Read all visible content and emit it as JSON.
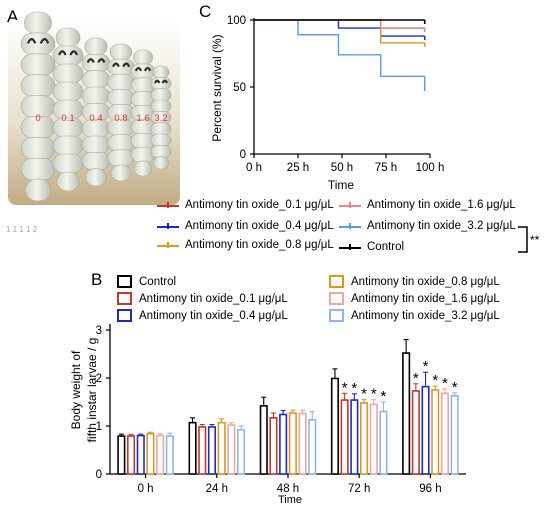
{
  "panels": {
    "a": "A",
    "b": "B",
    "c": "C"
  },
  "photo": {
    "larva_labels": [
      "0",
      "0.1",
      "0.4",
      "0.8",
      "1.6",
      "3.2"
    ],
    "scale_text": "1 1 1 1 2",
    "label_color": "#d9342b"
  },
  "survival_legend": {
    "items": [
      {
        "label": "Antimony tin oxide_0.1 μg/μL",
        "color": "#c0392b"
      },
      {
        "label": "Antimony tin oxide_1.6 μg/μL",
        "color": "#e58a87"
      },
      {
        "label": "Antimony tin oxide_0.4 μg/μL",
        "color": "#1f2bbf"
      },
      {
        "label": "Antimony tin oxide_3.2 μg/μL",
        "color": "#5b9be8"
      },
      {
        "label": "Antimony tin oxide_0.8 μg/μL",
        "color": "#d99a22"
      },
      {
        "label": "Control",
        "color": "#000000"
      }
    ],
    "significance": "**"
  },
  "body_weight_legend": {
    "items": [
      {
        "label": "Control",
        "color": "#000000"
      },
      {
        "label": "Antimony tin oxide_0.8 μg/μL",
        "color": "#d99a22"
      },
      {
        "label": "Antimony tin oxide_0.1 μg/μL",
        "color": "#c0392b"
      },
      {
        "label": "Antimony tin oxide_1.6 μg/μL",
        "color": "#eda7a4"
      },
      {
        "label": "Antimony tin oxide_0.4 μg/μL",
        "color": "#1f2bbf"
      },
      {
        "label": "Antimony tin oxide_3.2 μg/μL",
        "color": "#8fb6ec"
      }
    ]
  },
  "chart_data": [
    {
      "type": "line",
      "ylabel": "Percent survival (%)",
      "xlabel": "Time",
      "x_ticks": [
        "0 h",
        "25 h",
        "50 h",
        "75 h",
        "100 h"
      ],
      "y_ticks": [
        "0",
        "50",
        "100"
      ],
      "xlim": [
        0,
        100
      ],
      "ylim": [
        0,
        100
      ],
      "step": true,
      "series": [
        {
          "name": "Control",
          "color": "#000000",
          "x": [
            0,
            97
          ],
          "y": [
            100,
            100
          ]
        },
        {
          "name": "Antimony tin oxide_0.1 μg/μL",
          "color": "#c0392b",
          "x": [
            0,
            48,
            72,
            97
          ],
          "y": [
            100,
            100,
            94,
            94
          ]
        },
        {
          "name": "Antimony tin oxide_0.4 μg/μL",
          "color": "#1f2bbf",
          "x": [
            0,
            48,
            72,
            97
          ],
          "y": [
            100,
            94,
            88,
            88
          ]
        },
        {
          "name": "Antimony tin oxide_0.8 μg/μL",
          "color": "#d99a22",
          "x": [
            0,
            72,
            97
          ],
          "y": [
            100,
            83,
            83
          ]
        },
        {
          "name": "Antimony tin oxide_1.6 μg/μL",
          "color": "#e58a87",
          "x": [
            0,
            72,
            97
          ],
          "y": [
            100,
            94,
            94
          ]
        },
        {
          "name": "Antimony tin oxide_3.2 μg/μL",
          "color": "#5b9be8",
          "x": [
            0,
            25,
            48,
            72,
            97
          ],
          "y": [
            100,
            89,
            74,
            58,
            50
          ]
        }
      ]
    },
    {
      "type": "bar",
      "ylabel": "Body weight of fifth instar larvae / g",
      "ylabel_lines": [
        "Body weight of",
        "fifth instar larvae / g"
      ],
      "xlabel": "Time",
      "categories": [
        "0 h",
        "24 h",
        "48 h",
        "72 h",
        "96 h"
      ],
      "y_ticks": [
        "0",
        "1",
        "2",
        "3"
      ],
      "ylim": [
        0,
        3
      ],
      "series": [
        {
          "name": "Control",
          "color": "#000000",
          "values": [
            0.79,
            1.07,
            1.42,
            1.99,
            2.52
          ],
          "errors": [
            0.04,
            0.1,
            0.18,
            0.2,
            0.28
          ],
          "sig": [
            "",
            "",
            "",
            "",
            ""
          ]
        },
        {
          "name": "Antimony tin oxide_0.1 μg/μL",
          "color": "#c0392b",
          "values": [
            0.79,
            0.98,
            1.17,
            1.54,
            1.73
          ],
          "errors": [
            0.03,
            0.05,
            0.1,
            0.14,
            0.15
          ],
          "sig": [
            "",
            "",
            "",
            "*",
            "*"
          ]
        },
        {
          "name": "Antimony tin oxide_0.4 μg/μL",
          "color": "#1f2bbf",
          "values": [
            0.8,
            0.98,
            1.24,
            1.54,
            1.82
          ],
          "errors": [
            0.03,
            0.05,
            0.08,
            0.13,
            0.3
          ],
          "sig": [
            "",
            "",
            "",
            "*",
            "*"
          ]
        },
        {
          "name": "Antimony tin oxide_0.8 μg/μL",
          "color": "#d99a22",
          "values": [
            0.84,
            1.07,
            1.27,
            1.48,
            1.75
          ],
          "errors": [
            0.03,
            0.08,
            0.06,
            0.07,
            0.08
          ],
          "sig": [
            "",
            "",
            "",
            "*",
            "*"
          ]
        },
        {
          "name": "Antimony tin oxide_1.6 μg/μL",
          "color": "#eda7a4",
          "values": [
            0.8,
            1.02,
            1.26,
            1.45,
            1.68
          ],
          "errors": [
            0.04,
            0.05,
            0.07,
            0.1,
            0.09
          ],
          "sig": [
            "",
            "",
            "",
            "*",
            "*"
          ]
        },
        {
          "name": "Antimony tin oxide_3.2 μg/μL",
          "color": "#8fb6ec",
          "values": [
            0.79,
            0.92,
            1.13,
            1.3,
            1.63
          ],
          "errors": [
            0.06,
            0.08,
            0.17,
            0.2,
            0.06
          ],
          "sig": [
            "",
            "",
            "",
            "*",
            "*"
          ]
        }
      ]
    }
  ]
}
